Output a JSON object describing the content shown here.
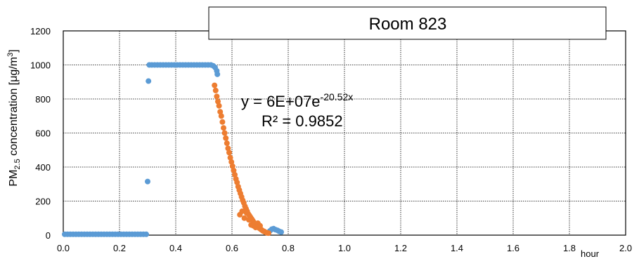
{
  "chart_data": {
    "type": "scatter",
    "title": "Room 823",
    "ylabel": {
      "main": "PM",
      "sub": "2.5",
      "rest": " concentration [μg/m",
      "sup": "3",
      "close": "]"
    },
    "xunit": "hour",
    "xlim": [
      0,
      2
    ],
    "ylim": [
      0,
      1200
    ],
    "xticks": [
      "0.0",
      "0.2",
      "0.4",
      "0.6",
      "0.8",
      "1.0",
      "1.2",
      "1.4",
      "1.6",
      "1.8",
      "2.0"
    ],
    "yticks": [
      "0",
      "200",
      "400",
      "600",
      "800",
      "1000",
      "1200"
    ],
    "grid": true,
    "annotation": {
      "equation_base": "y = 6E+07e",
      "equation_exp": "-20.52x",
      "r2": "R² = 0.9852"
    },
    "colors": {
      "measured": "#5b9bd5",
      "decay": "#ed7d31"
    },
    "series": [
      {
        "color": "#5b9bd5",
        "points": [
          [
            0.005,
            5
          ],
          [
            0.015,
            5
          ],
          [
            0.025,
            5
          ],
          [
            0.035,
            5
          ],
          [
            0.045,
            5
          ],
          [
            0.055,
            5
          ],
          [
            0.065,
            5
          ],
          [
            0.075,
            5
          ],
          [
            0.085,
            5
          ],
          [
            0.095,
            5
          ],
          [
            0.105,
            5
          ],
          [
            0.115,
            5
          ],
          [
            0.125,
            5
          ],
          [
            0.135,
            5
          ],
          [
            0.145,
            5
          ],
          [
            0.155,
            5
          ],
          [
            0.165,
            5
          ],
          [
            0.175,
            5
          ],
          [
            0.185,
            5
          ],
          [
            0.195,
            5
          ],
          [
            0.205,
            5
          ],
          [
            0.215,
            5
          ],
          [
            0.225,
            5
          ],
          [
            0.235,
            5
          ],
          [
            0.245,
            5
          ],
          [
            0.255,
            5
          ],
          [
            0.265,
            5
          ],
          [
            0.275,
            5
          ],
          [
            0.285,
            5
          ],
          [
            0.295,
            5
          ],
          [
            0.3,
            315
          ],
          [
            0.303,
            905
          ],
          [
            0.306,
            1000
          ],
          [
            0.315,
            1000
          ],
          [
            0.325,
            1000
          ],
          [
            0.335,
            1000
          ],
          [
            0.345,
            1000
          ],
          [
            0.355,
            1000
          ],
          [
            0.365,
            1000
          ],
          [
            0.375,
            1000
          ],
          [
            0.385,
            1000
          ],
          [
            0.395,
            1000
          ],
          [
            0.405,
            1000
          ],
          [
            0.415,
            1000
          ],
          [
            0.425,
            1000
          ],
          [
            0.435,
            1000
          ],
          [
            0.445,
            1000
          ],
          [
            0.455,
            1000
          ],
          [
            0.465,
            1000
          ],
          [
            0.475,
            1000
          ],
          [
            0.485,
            1000
          ],
          [
            0.495,
            1000
          ],
          [
            0.505,
            1000
          ],
          [
            0.515,
            1000
          ],
          [
            0.525,
            1000
          ],
          [
            0.533,
            995
          ],
          [
            0.54,
            985
          ],
          [
            0.546,
            965
          ],
          [
            0.548,
            945
          ],
          [
            0.735,
            25
          ],
          [
            0.742,
            35
          ],
          [
            0.748,
            38
          ],
          [
            0.755,
            32
          ],
          [
            0.762,
            28
          ],
          [
            0.768,
            22
          ],
          [
            0.775,
            18
          ]
        ]
      },
      {
        "color": "#ed7d31",
        "points": [
          [
            0.538,
            880
          ],
          [
            0.542,
            850
          ],
          [
            0.546,
            815
          ],
          [
            0.55,
            785
          ],
          [
            0.554,
            760
          ],
          [
            0.558,
            725
          ],
          [
            0.562,
            700
          ],
          [
            0.566,
            665
          ],
          [
            0.57,
            630
          ],
          [
            0.574,
            600
          ],
          [
            0.578,
            570
          ],
          [
            0.582,
            540
          ],
          [
            0.586,
            510
          ],
          [
            0.59,
            485
          ],
          [
            0.594,
            455
          ],
          [
            0.598,
            430
          ],
          [
            0.602,
            405
          ],
          [
            0.606,
            380
          ],
          [
            0.61,
            355
          ],
          [
            0.614,
            330
          ],
          [
            0.618,
            310
          ],
          [
            0.622,
            285
          ],
          [
            0.626,
            265
          ],
          [
            0.63,
            245
          ],
          [
            0.634,
            225
          ],
          [
            0.638,
            205
          ],
          [
            0.642,
            190
          ],
          [
            0.646,
            170
          ],
          [
            0.65,
            155
          ],
          [
            0.654,
            140
          ],
          [
            0.658,
            125
          ],
          [
            0.662,
            115
          ],
          [
            0.666,
            105
          ],
          [
            0.67,
            95
          ],
          [
            0.674,
            85
          ],
          [
            0.678,
            75
          ],
          [
            0.682,
            68
          ],
          [
            0.686,
            60
          ],
          [
            0.69,
            52
          ],
          [
            0.694,
            45
          ],
          [
            0.698,
            40
          ],
          [
            0.702,
            35
          ],
          [
            0.706,
            30
          ],
          [
            0.71,
            25
          ],
          [
            0.714,
            22
          ],
          [
            0.718,
            18
          ],
          [
            0.722,
            15
          ],
          [
            0.726,
            13
          ],
          [
            0.73,
            12
          ],
          [
            0.628,
            120
          ],
          [
            0.636,
            140
          ],
          [
            0.644,
            100
          ],
          [
            0.652,
            130
          ],
          [
            0.66,
            90
          ],
          [
            0.668,
            60
          ],
          [
            0.676,
            55
          ],
          [
            0.684,
            45
          ],
          [
            0.692,
            70
          ],
          [
            0.7,
            55
          ]
        ]
      }
    ]
  }
}
